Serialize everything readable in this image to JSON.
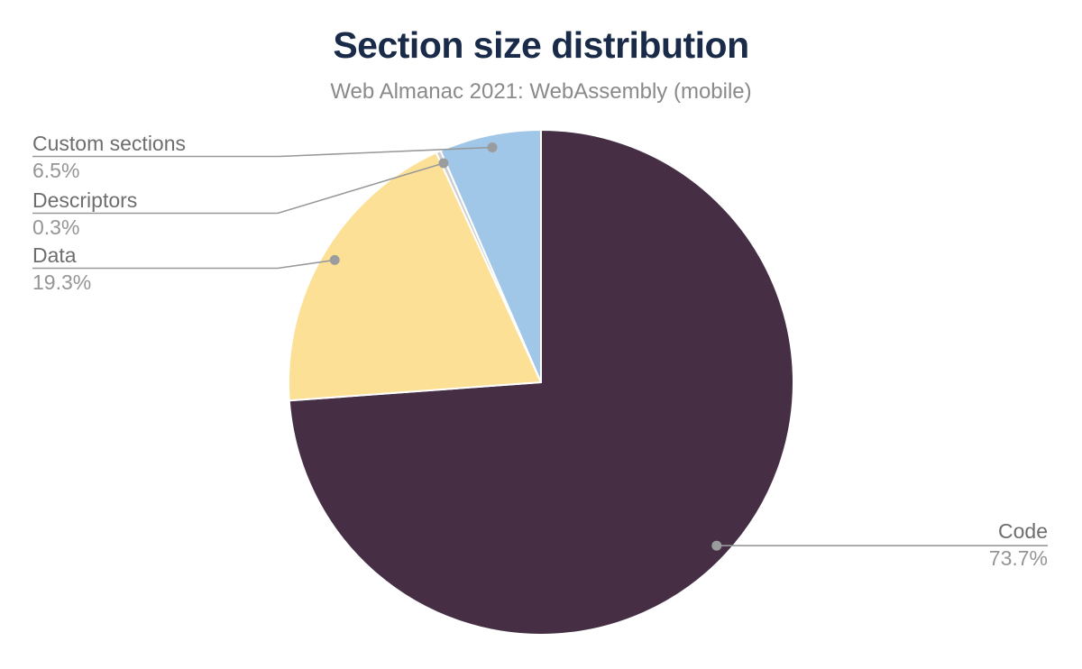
{
  "chart": {
    "title": "Section size distribution",
    "subtitle": "Web Almanac 2021: WebAssembly (mobile)"
  },
  "chart_data": {
    "type": "pie",
    "title": "Section size distribution",
    "subtitle": "Web Almanac 2021: WebAssembly (mobile)",
    "unit": "percent",
    "start_angle_deg": 0,
    "direction": "clockwise",
    "legend_position": "callout-labels",
    "slices": [
      {
        "label": "Code",
        "value": 73.7,
        "pct_label": "73.7%",
        "color": "#462F45",
        "label_side": "right"
      },
      {
        "label": "Data",
        "value": 19.3,
        "pct_label": "19.3%",
        "color": "#FCE095",
        "label_side": "left"
      },
      {
        "label": "Descriptors",
        "value": 0.3,
        "pct_label": "0.3%",
        "color": "#CFCFCF",
        "label_side": "left"
      },
      {
        "label": "Custom sections",
        "value": 6.5,
        "pct_label": "6.5%",
        "color": "#A0C6E8",
        "label_side": "left"
      }
    ],
    "style": {
      "slice_border_color": "#FFFFFF",
      "leader_line_color": "#97999B",
      "leader_dot_color": "#9A9C9E",
      "title_color": "#1A2B49",
      "subtitle_color": "#8A8A8A",
      "label_color": "#6E6E6E",
      "value_color": "#959595"
    }
  }
}
